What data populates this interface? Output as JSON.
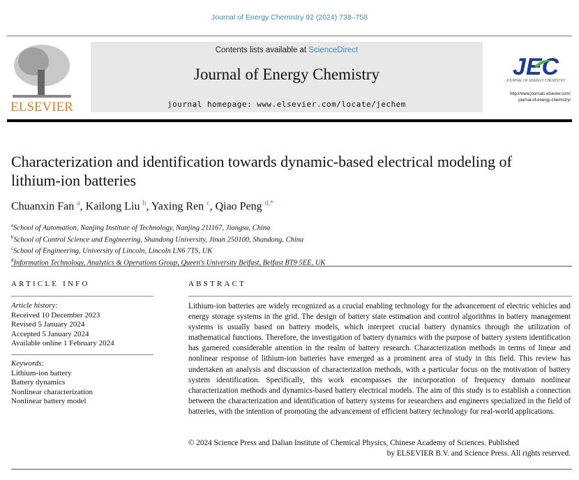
{
  "citation": "Journal of Energy Chemistry 92 (2024) 738–758",
  "header": {
    "contents_prefix": "Contents lists available at ",
    "contents_link": "ScienceDirect",
    "journal_title": "Journal of Energy Chemistry",
    "homepage": "journal homepage: www.elsevier.com/locate/jechem",
    "publisher_logo": "ELSEVIER",
    "journal_logo": "JEC",
    "journal_logo_sub": "JOURNAL OF ENERGY CHEMISTRY",
    "journal_url_1": "http://www.journals.elsevier.com/",
    "journal_url_2": "journal-of-energy-chemistry/",
    "link_color": "#3a8fb7"
  },
  "article": {
    "title": "Characterization and identification towards dynamic-based electrical modeling of lithium-ion batteries",
    "authors": [
      {
        "name": "Chuanxin Fan",
        "sup": "a",
        "sep": ", "
      },
      {
        "name": "Kailong Liu",
        "sup": "b",
        "sep": ", "
      },
      {
        "name": "Yaxing Ren",
        "sup": "c",
        "sep": ", "
      },
      {
        "name": "Qiao Peng",
        "sup": "d,*",
        "sep": ""
      }
    ],
    "affiliations": [
      {
        "sup": "a",
        "text": "School of Automation, Nanjing Institute of Technology, Nanjing 211167, Jiangsu, China"
      },
      {
        "sup": "b",
        "text": "School of Control Science and Engineering, Shandong University, Jinan 250100, Shandong, China"
      },
      {
        "sup": "c",
        "text": "School of Engineering, University of Lincoln, Lincoln LN6 7TS, UK"
      },
      {
        "sup": "d",
        "text": "Information Technology, Analytics & Operations Group, Queen's University Belfast, Belfast BT9 5EE, UK"
      }
    ]
  },
  "article_info": {
    "heading": "ARTICLE INFO",
    "history_label": "Article history:",
    "history": [
      "Received 10 December 2023",
      "Revised 5 January 2024",
      "Accepted 5 January 2024",
      "Available online 1 February 2024"
    ],
    "keywords_label": "Keywords:",
    "keywords": [
      "Lithium-ion battery",
      "Battery dynamics",
      "Nonlinear characterization",
      "Nonlinear battery model"
    ]
  },
  "abstract": {
    "heading": "ABSTRACT",
    "text": "Lithium-ion batteries are widely recognized as a crucial enabling technology for the advancement of electric vehicles and energy storage systems in the grid. The design of battery state estimation and control algorithms in battery management systems is usually based on battery models, which interpret crucial battery dynamics through the utilization of mathematical functions. Therefore, the investigation of battery dynamics with the purpose of battery system identification has garnered considerable attention in the realm of battery research. Characterization methods in terms of linear and nonlinear response of lithium-ion batteries have emerged as a prominent area of study in this field. This review has undertaken an analysis and discussion of characterization methods, with a particular focus on the motivation of battery system identification. Specifically, this work encompasses the incorporation of frequency domain nonlinear characterization methods and dynamics-based battery electrical models. The aim of this study is to establish a connection between the characterization and identification of battery systems for researchers and engineers specialized in the field of batteries, with the intention of promoting the advancement of efficient battery technology for real-world applications.",
    "copyright_1": "© 2024 Science Press and Dalian Institute of Chemical Physics, Chinese Academy of Sciences. Published",
    "copyright_2": "by ELSEVIER B.V. and Science Press. All rights reserved."
  }
}
